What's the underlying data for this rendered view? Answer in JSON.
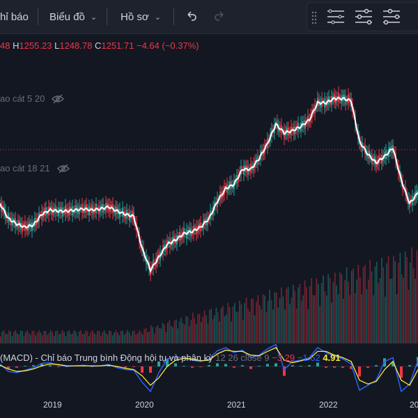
{
  "toolbar": {
    "indicators_label": "hỉ báo",
    "chart_label": "Biểu đồ",
    "profile_label": "Hồ sơ"
  },
  "ohlc": {
    "open_value": "48",
    "high_key": "H",
    "high_value": "1255.23",
    "low_key": "L",
    "low_value": "1248.78",
    "close_key": "C",
    "close_value": "1251.71",
    "change": "−4.64 (−0.37%)"
  },
  "legends": {
    "ma_top": "ao cát 5 20",
    "ma_mid": "ao cát 18 21"
  },
  "macd": {
    "title": "(MACD) - Chỉ báo Trung bình Động hội tụ và phân kỳ",
    "params": "12 26 close 9",
    "v1": "−3.29",
    "v2": "−1.62",
    "v3": "4.91"
  },
  "time_axis": [
    "2019",
    "2020",
    "2021",
    "2022",
    "20"
  ],
  "colors": {
    "background": "#131722",
    "up": "#26a69a",
    "down": "#f23645",
    "price_line": "#ffffff",
    "macd_line": "#2962ff",
    "signal_line": "#ffeb3b"
  },
  "chart_data": {
    "type": "line",
    "x": [
      "2018-09",
      "2018-10",
      "2018-11",
      "2018-12",
      "2019-01",
      "2019-02",
      "2019-03",
      "2019-04",
      "2019-05",
      "2019-06",
      "2019-07",
      "2019-08",
      "2019-09",
      "2019-10",
      "2019-11",
      "2019-12",
      "2020-01",
      "2020-02",
      "2020-03",
      "2020-04",
      "2020-05",
      "2020-06",
      "2020-07",
      "2020-08",
      "2020-09",
      "2020-10",
      "2020-11",
      "2020-12",
      "2021-01",
      "2021-02",
      "2021-03",
      "2021-04",
      "2021-05",
      "2021-06",
      "2021-07",
      "2021-08",
      "2021-09",
      "2021-10",
      "2021-11",
      "2021-12",
      "2022-01",
      "2022-02",
      "2022-03",
      "2022-04",
      "2022-05",
      "2022-06",
      "2022-07",
      "2022-08",
      "2022-09",
      "2022-10",
      "2022-11"
    ],
    "series": [
      {
        "values": [
          1010,
          940,
          915,
          900,
          910,
          960,
          980,
          975,
          975,
          980,
          985,
          980,
          985,
          995,
          975,
          960,
          950,
          800,
          700,
          760,
          820,
          840,
          870,
          880,
          900,
          940,
          1020,
          1080,
          1100,
          1170,
          1170,
          1220,
          1290,
          1380,
          1340,
          1350,
          1370,
          1400,
          1480,
          1480,
          1500,
          1500,
          1490,
          1300,
          1240,
          1200,
          1230,
          1270,
          1120,
          1010,
          1060
        ]
      }
    ],
    "macd": [
      4,
      -8,
      -10,
      -6,
      -2,
      5,
      6,
      2,
      0,
      1,
      2,
      0,
      1,
      3,
      -2,
      -5,
      -6,
      -25,
      -40,
      -10,
      12,
      15,
      14,
      10,
      8,
      12,
      25,
      30,
      22,
      26,
      14,
      18,
      28,
      35,
      -5,
      8,
      10,
      14,
      30,
      22,
      16,
      12,
      4,
      -38,
      -30,
      -22,
      8,
      14,
      -40,
      -28,
      10
    ],
    "signal": [
      2,
      -4,
      -8,
      -7,
      -4,
      1,
      4,
      3,
      1,
      1,
      1,
      1,
      1,
      2,
      0,
      -3,
      -5,
      -15,
      -30,
      -18,
      0,
      10,
      13,
      12,
      9,
      10,
      20,
      26,
      24,
      24,
      18,
      17,
      24,
      30,
      10,
      6,
      9,
      12,
      24,
      24,
      18,
      14,
      8,
      -22,
      -28,
      -24,
      -5,
      8,
      -22,
      -30,
      -5
    ],
    "ylim": [
      650,
      1560
    ]
  }
}
